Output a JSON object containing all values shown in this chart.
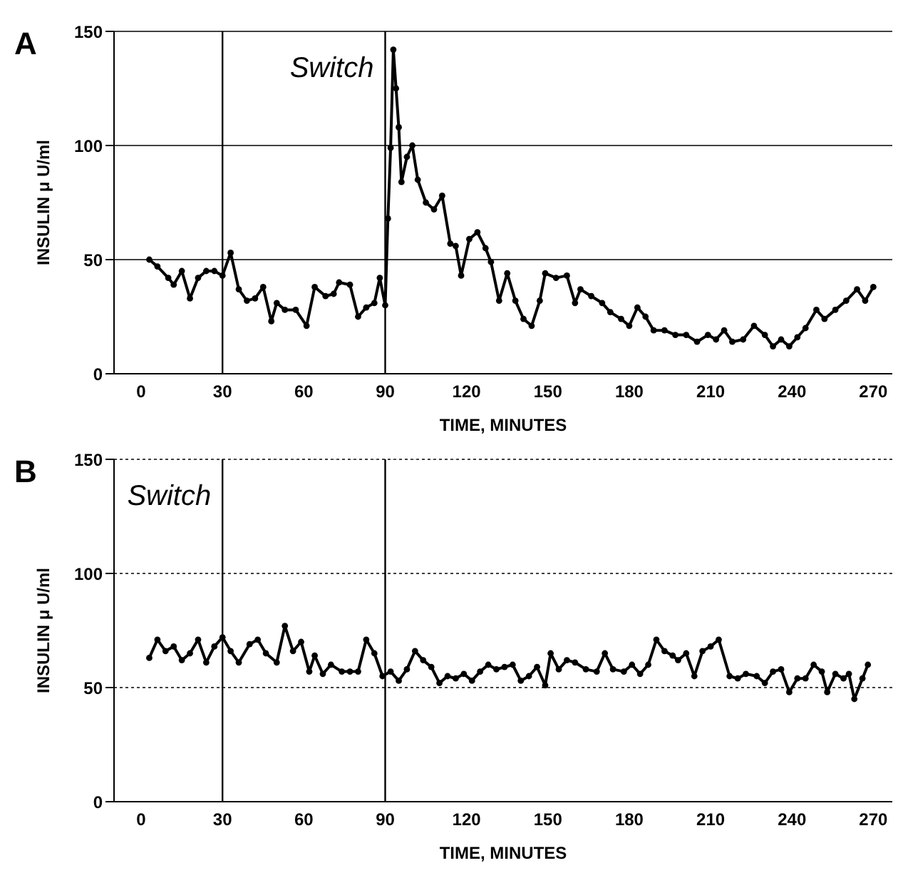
{
  "chart_data": [
    {
      "type": "line",
      "title": "A",
      "xlabel": "TIME, MINUTES",
      "ylabel": "INSULIN μ U/ml",
      "color": "#000000",
      "marker": "circle",
      "grid": "y",
      "xlim": [
        -10,
        277
      ],
      "ylim": [
        0,
        150
      ],
      "xticks": [
        0,
        30,
        60,
        90,
        120,
        150,
        180,
        210,
        240,
        270
      ],
      "yticks": [
        0,
        50,
        100,
        150
      ],
      "ref_lines": [
        {
          "axis": "x",
          "value": 90,
          "label": "Switch"
        },
        {
          "axis": "x",
          "value": 30
        }
      ],
      "x": [
        3,
        6,
        10,
        12,
        15,
        18,
        21,
        24,
        27,
        30,
        33,
        36,
        39,
        42,
        45,
        48,
        50,
        53,
        57,
        61,
        64,
        68,
        71,
        73,
        77,
        80,
        83,
        86,
        88,
        90,
        91,
        92,
        93,
        94,
        95,
        96,
        98,
        100,
        102,
        105,
        108,
        111,
        114,
        116,
        118,
        121,
        124,
        127,
        129,
        132,
        135,
        138,
        141,
        144,
        147,
        149,
        153,
        157,
        160,
        162,
        166,
        170,
        173,
        177,
        180,
        183,
        186,
        189,
        193,
        197,
        201,
        205,
        209,
        212,
        215,
        218,
        222,
        226,
        230,
        233,
        236,
        239,
        242,
        245,
        249,
        252,
        256,
        260,
        264,
        267,
        270
      ],
      "values": [
        50,
        47,
        42,
        39,
        45,
        33,
        42,
        45,
        45,
        43,
        53,
        37,
        32,
        33,
        38,
        23,
        31,
        28,
        28,
        21,
        38,
        34,
        35,
        40,
        39,
        25,
        29,
        31,
        42,
        30,
        68,
        99,
        142,
        125,
        108,
        84,
        95,
        100,
        85,
        75,
        72,
        78,
        57,
        56,
        43,
        59,
        62,
        55,
        49,
        32,
        44,
        32,
        24,
        21,
        32,
        44,
        42,
        43,
        31,
        37,
        34,
        31,
        27,
        24,
        21,
        29,
        25,
        19,
        19,
        17,
        17,
        14,
        17,
        15,
        19,
        14,
        15,
        21,
        17,
        12,
        15,
        12,
        16,
        20,
        28,
        24,
        28,
        32,
        37,
        32,
        38
      ]
    },
    {
      "type": "line",
      "title": "B",
      "xlabel": "TIME, MINUTES",
      "ylabel": "INSULIN μ U/ml",
      "color": "#000000",
      "marker": "circle",
      "grid": "y",
      "xlim": [
        -10,
        277
      ],
      "ylim": [
        0,
        150
      ],
      "xticks": [
        0,
        30,
        60,
        90,
        120,
        150,
        180,
        210,
        240,
        270
      ],
      "yticks": [
        0,
        50,
        100,
        150
      ],
      "ref_lines": [
        {
          "axis": "x",
          "value": 30,
          "label": "Switch"
        },
        {
          "axis": "x",
          "value": 90
        }
      ],
      "x": [
        3,
        6,
        9,
        12,
        15,
        18,
        21,
        24,
        27,
        30,
        33,
        36,
        40,
        43,
        46,
        50,
        53,
        56,
        59,
        62,
        64,
        67,
        70,
        74,
        77,
        80,
        83,
        86,
        89,
        92,
        95,
        98,
        101,
        104,
        107,
        110,
        113,
        116,
        119,
        122,
        125,
        128,
        131,
        134,
        137,
        140,
        143,
        146,
        149,
        151,
        154,
        157,
        160,
        164,
        168,
        171,
        174,
        178,
        181,
        184,
        187,
        190,
        193,
        196,
        198,
        201,
        204,
        207,
        210,
        213,
        217,
        220,
        223,
        227,
        230,
        233,
        236,
        239,
        242,
        245,
        248,
        251,
        253,
        256,
        259,
        261,
        263,
        266,
        268
      ],
      "values": [
        63,
        71,
        66,
        68,
        62,
        65,
        71,
        61,
        68,
        72,
        66,
        61,
        69,
        71,
        65,
        61,
        77,
        66,
        70,
        57,
        64,
        56,
        60,
        57,
        57,
        57,
        71,
        65,
        55,
        57,
        53,
        58,
        66,
        62,
        59,
        52,
        55,
        54,
        56,
        53,
        57,
        60,
        58,
        59,
        60,
        53,
        55,
        59,
        51,
        65,
        58,
        62,
        61,
        58,
        57,
        65,
        58,
        57,
        60,
        56,
        60,
        71,
        66,
        64,
        62,
        65,
        55,
        66,
        68,
        71,
        55,
        54,
        56,
        55,
        52,
        57,
        58,
        48,
        54,
        54,
        60,
        57,
        48,
        56,
        54,
        56,
        45,
        54,
        60
      ]
    }
  ]
}
